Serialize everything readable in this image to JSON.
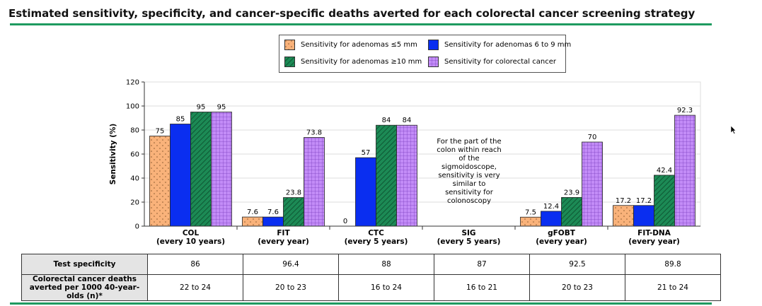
{
  "title": "Estimated sensitivity, specificity, and cancer-specific deaths averted for each colorectal cancer screening strategy",
  "chart_data": {
    "type": "bar",
    "ylabel": "Sensitivity (%)",
    "ylim": [
      0,
      120
    ],
    "yticks": [
      0,
      20,
      40,
      60,
      80,
      100,
      120
    ],
    "grid": true,
    "legend_position": "top-center",
    "categories": [
      [
        "COL",
        "(every 10 years)"
      ],
      [
        "FIT",
        "(every year)"
      ],
      [
        "CTC",
        "(every 5 years)"
      ],
      [
        "SIG",
        "(every 5 years)"
      ],
      [
        "gFOBT",
        "(every year)"
      ],
      [
        "FIT-DNA",
        "(every year)"
      ]
    ],
    "series": [
      {
        "name": "Sensitivity for adenomas ≤5 mm",
        "color": "#f9b27a",
        "pattern": "dots",
        "values": [
          75,
          7.6,
          0,
          null,
          7.5,
          17.2
        ],
        "labels": [
          "75",
          "7.6",
          "0",
          "",
          "7.5",
          "17.2"
        ]
      },
      {
        "name": "Sensitivity for adenomas 6 to 9 mm",
        "color": "#0a2ef0",
        "pattern": "solid",
        "values": [
          85,
          7.6,
          57,
          null,
          12.4,
          17.2
        ],
        "labels": [
          "85",
          "7.6",
          "57",
          "",
          "12.4",
          "17.2"
        ]
      },
      {
        "name": "Sensitivity for adenomas ≥10 mm",
        "color": "#1c8a55",
        "pattern": "diagonal",
        "values": [
          95,
          23.8,
          84,
          null,
          23.9,
          42.4
        ],
        "labels": [
          "95",
          "23.8",
          "84",
          "",
          "23.9",
          "42.4"
        ]
      },
      {
        "name": "Sensitivity for colorectal cancer",
        "color": "#c38cf7",
        "pattern": "grid",
        "values": [
          95,
          73.8,
          84,
          null,
          70,
          92.3
        ],
        "labels": [
          "95",
          "73.8",
          "84",
          "",
          "70",
          "92.3"
        ]
      }
    ],
    "annotation": "For the part of the colon within reach of the sigmoidoscope, sensitivity is very similar to sensitivity for colonoscopy"
  },
  "table": {
    "rows": [
      {
        "header": "Test specificity",
        "values": [
          "86",
          "96.4",
          "88",
          "87",
          "92.5",
          "89.8"
        ]
      },
      {
        "header": "Colorectal cancer deaths averted per 1000 40-year-olds (n)*",
        "values": [
          "22 to 24",
          "20 to 23",
          "16 to 24",
          "16 to 21",
          "20 to 23",
          "21 to 24"
        ]
      }
    ]
  }
}
